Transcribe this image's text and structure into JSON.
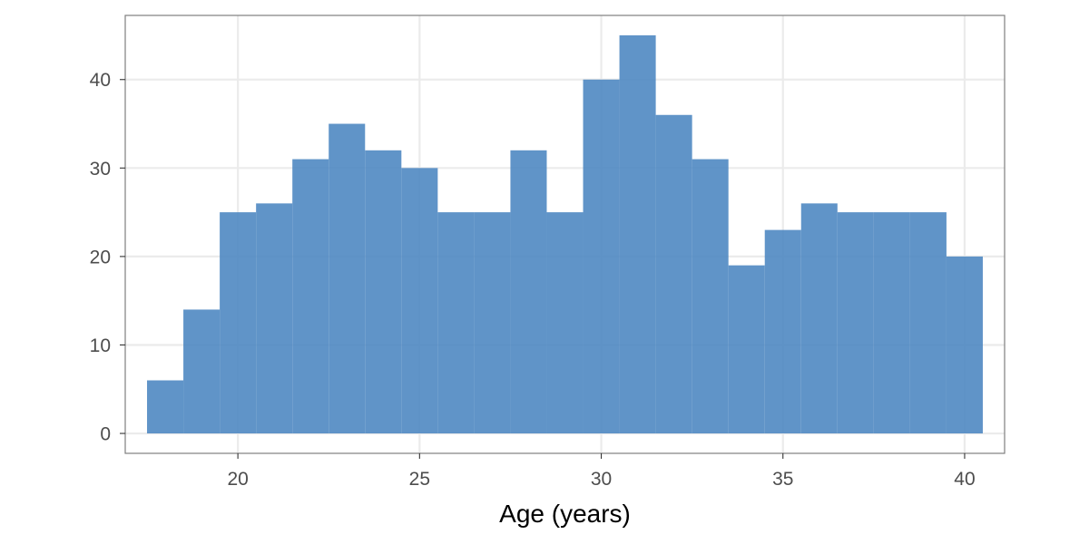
{
  "chart_data": {
    "type": "bar",
    "subtype": "histogram",
    "bin_width": 1,
    "bins": [
      {
        "x_start": 17.5,
        "x_end": 18.5,
        "count": 6
      },
      {
        "x_start": 18.5,
        "x_end": 19.5,
        "count": 14
      },
      {
        "x_start": 19.5,
        "x_end": 20.5,
        "count": 25
      },
      {
        "x_start": 20.5,
        "x_end": 21.5,
        "count": 26
      },
      {
        "x_start": 21.5,
        "x_end": 22.5,
        "count": 31
      },
      {
        "x_start": 22.5,
        "x_end": 23.5,
        "count": 35
      },
      {
        "x_start": 23.5,
        "x_end": 24.5,
        "count": 32
      },
      {
        "x_start": 24.5,
        "x_end": 25.5,
        "count": 30
      },
      {
        "x_start": 25.5,
        "x_end": 26.5,
        "count": 25
      },
      {
        "x_start": 26.5,
        "x_end": 27.5,
        "count": 25
      },
      {
        "x_start": 27.5,
        "x_end": 28.5,
        "count": 32
      },
      {
        "x_start": 28.5,
        "x_end": 29.5,
        "count": 25
      },
      {
        "x_start": 29.5,
        "x_end": 30.5,
        "count": 40
      },
      {
        "x_start": 30.5,
        "x_end": 31.5,
        "count": 45
      },
      {
        "x_start": 31.5,
        "x_end": 32.5,
        "count": 36
      },
      {
        "x_start": 32.5,
        "x_end": 33.5,
        "count": 31
      },
      {
        "x_start": 33.5,
        "x_end": 34.5,
        "count": 19
      },
      {
        "x_start": 34.5,
        "x_end": 35.5,
        "count": 23
      },
      {
        "x_start": 35.5,
        "x_end": 36.5,
        "count": 26
      },
      {
        "x_start": 36.5,
        "x_end": 37.5,
        "count": 25
      },
      {
        "x_start": 37.5,
        "x_end": 38.5,
        "count": 25
      },
      {
        "x_start": 38.5,
        "x_end": 39.5,
        "count": 25
      },
      {
        "x_start": 39.5,
        "x_end": 40.5,
        "count": 20
      }
    ],
    "title": "",
    "xlabel": "Age (years)",
    "ylabel": "",
    "xlim": [
      16.9,
      41.1
    ],
    "ylim": [
      -2.25,
      47.25
    ],
    "xticks": [
      20,
      25,
      30,
      35,
      40
    ],
    "yticks": [
      0,
      10,
      20,
      30,
      40
    ],
    "grid": true,
    "legend": "none",
    "colors": {
      "bar": "#4f88c2",
      "grid": "#ebebeb",
      "panel_border": "#7f7f7f",
      "tick_text": "#4d4d4d",
      "title_text": "#000000"
    }
  }
}
